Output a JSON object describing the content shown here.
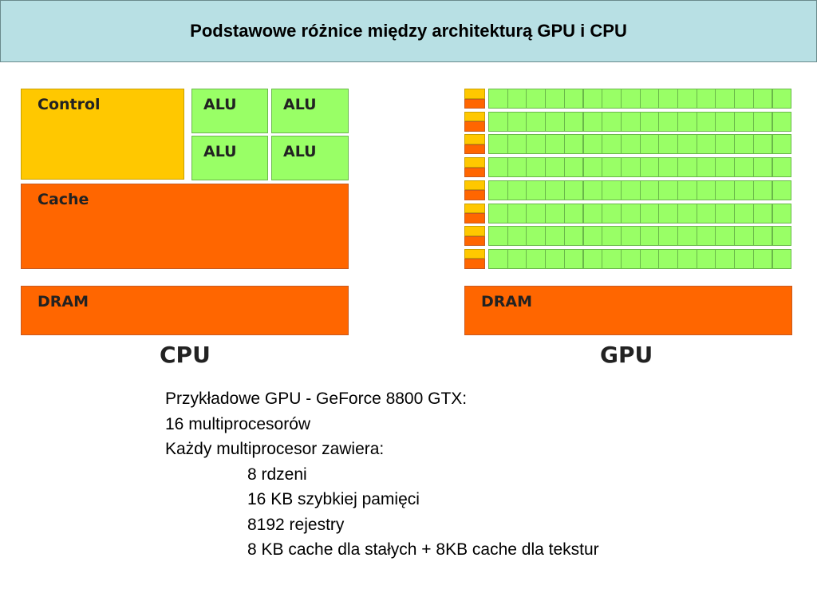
{
  "title": "Podstawowe różnice między architekturą GPU i CPU",
  "cpu": {
    "control_label": "Control",
    "alu_labels": [
      "ALU",
      "ALU",
      "ALU",
      "ALU"
    ],
    "cache_label": "Cache",
    "dram_label": "DRAM",
    "caption": "CPU"
  },
  "gpu": {
    "rows": 8,
    "cores_per_row": 16,
    "dram_label": "DRAM",
    "caption": "GPU"
  },
  "colors": {
    "control": "#ffc800",
    "alu": "#99ff66",
    "cache": "#ff6600",
    "dram": "#ff6600",
    "title_bg": "#b8e0e4"
  },
  "notes": [
    "Przykładowe GPU - GeForce 8800 GTX:",
    "16 multiprocesorów",
    "Każdy multiprocesor zawiera:",
    "8 rdzeni",
    "16 KB szybkiej pamięci",
    "8192 rejestry",
    "8 KB cache dla stałych + 8KB cache dla tekstur"
  ]
}
